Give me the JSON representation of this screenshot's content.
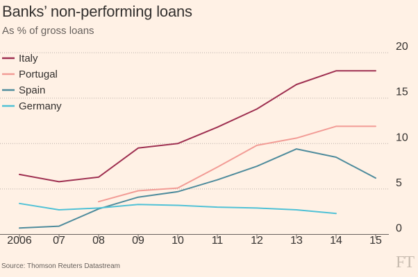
{
  "title": "Banks’ non-performing loans",
  "subtitle": "As % of gross loans",
  "source": "Source: Thomson Reuters Datastream",
  "logo": "FT",
  "colors": {
    "background": "#fff1e5",
    "gridline": "#b8aea6",
    "baseline": "#66605c",
    "text": "#33302e"
  },
  "chart_data": {
    "type": "line",
    "title": "Banks’ non-performing loans",
    "subtitle": "As % of gross loans",
    "x": [
      2006,
      2007,
      2008,
      2009,
      2010,
      2011,
      2012,
      2013,
      2014,
      2015
    ],
    "x_tick_labels": [
      "2006",
      "07",
      "08",
      "09",
      "10",
      "11",
      "12",
      "13",
      "14",
      "15"
    ],
    "y_ticks": [
      0,
      5,
      10,
      15,
      20
    ],
    "ylim": [
      -0.5,
      21
    ],
    "y_axis_side": "right",
    "grid": "horizontal dotted",
    "legend_position": "top-left",
    "series": [
      {
        "name": "Italy",
        "color": "#9e2f50",
        "points": [
          [
            2006,
            6.6
          ],
          [
            2007,
            5.8
          ],
          [
            2008,
            6.3
          ],
          [
            2009,
            9.5
          ],
          [
            2010,
            10.0
          ],
          [
            2011,
            11.8
          ],
          [
            2012,
            13.8
          ],
          [
            2013,
            16.5
          ],
          [
            2014,
            18.0
          ],
          [
            2015,
            18.0
          ]
        ]
      },
      {
        "name": "Portugal",
        "color": "#f29b95",
        "points": [
          [
            2008,
            3.6
          ],
          [
            2009,
            4.8
          ],
          [
            2010,
            5.1
          ],
          [
            2011,
            7.4
          ],
          [
            2012,
            9.8
          ],
          [
            2013,
            10.6
          ],
          [
            2014,
            11.9
          ],
          [
            2015,
            11.9
          ]
        ]
      },
      {
        "name": "Spain",
        "color": "#4e8b9c",
        "points": [
          [
            2006,
            0.7
          ],
          [
            2007,
            0.9
          ],
          [
            2008,
            2.8
          ],
          [
            2009,
            4.1
          ],
          [
            2010,
            4.7
          ],
          [
            2011,
            6.0
          ],
          [
            2012,
            7.5
          ],
          [
            2013,
            9.4
          ],
          [
            2014,
            8.5
          ],
          [
            2015,
            6.2
          ]
        ]
      },
      {
        "name": "Germany",
        "color": "#4fc1d6",
        "points": [
          [
            2006,
            3.4
          ],
          [
            2007,
            2.7
          ],
          [
            2008,
            2.9
          ],
          [
            2009,
            3.3
          ],
          [
            2010,
            3.2
          ],
          [
            2011,
            3.0
          ],
          [
            2012,
            2.9
          ],
          [
            2013,
            2.7
          ],
          [
            2014,
            2.3
          ]
        ]
      }
    ]
  }
}
